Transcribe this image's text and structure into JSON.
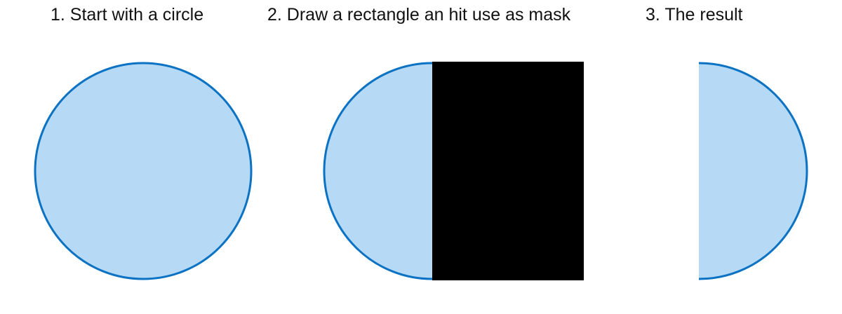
{
  "steps": [
    {
      "label": "1. Start with a circle"
    },
    {
      "label": "2. Draw a rectangle an hit use as mask"
    },
    {
      "label": "3. The result"
    }
  ],
  "colors": {
    "circle_fill": "#b6daf5",
    "circle_stroke": "#0b72c4",
    "mask_fill": "#000000",
    "background": "#ffffff"
  }
}
